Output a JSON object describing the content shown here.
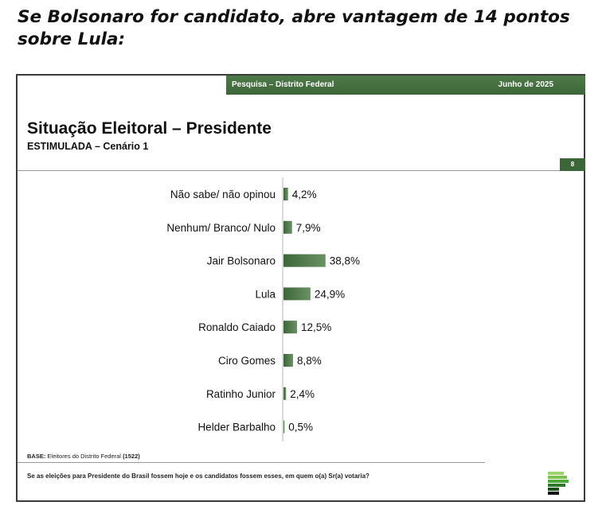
{
  "headline": "Se Bolsonaro for candidato, abre vantagem de 14 pontos sobre Lula:",
  "topbar": {
    "left": "Pesquisa – Distrito Federal",
    "right": "Junho de 2025"
  },
  "page_number": "8",
  "footer": {
    "base_label": "BASE:",
    "base_text": " Eleitores do Distrito Federal ",
    "base_count": "(1522)",
    "question": "Se as eleições para Presidente do Brasil fossem hoje e os candidatos fossem esses, em quem o(a) Sr(a) votaria?"
  },
  "colors": {
    "bar": "#3d6638",
    "bar_light": "#6a9164",
    "topbar": "#3d6638"
  },
  "chart_data": {
    "type": "bar",
    "orientation": "horizontal",
    "title": "Situação Eleitoral – Presidente",
    "subtitle": "ESTIMULADA – Cenário 1",
    "categories": [
      "Não sabe/ não opinou",
      "Nenhum/ Branco/ Nulo",
      "Jair Bolsonaro",
      "Lula",
      "Ronaldo Caiado",
      "Ciro Gomes",
      "Ratinho Junior",
      "Helder Barbalho"
    ],
    "values": [
      4.2,
      7.9,
      38.8,
      24.9,
      12.5,
      8.8,
      2.4,
      0.5
    ],
    "value_labels": [
      "4,2%",
      "7,9%",
      "38,8%",
      "24,9%",
      "12,5%",
      "8,8%",
      "2,4%",
      "0,5%"
    ],
    "xlim": [
      0,
      100
    ],
    "grid": false,
    "legend": "none"
  }
}
